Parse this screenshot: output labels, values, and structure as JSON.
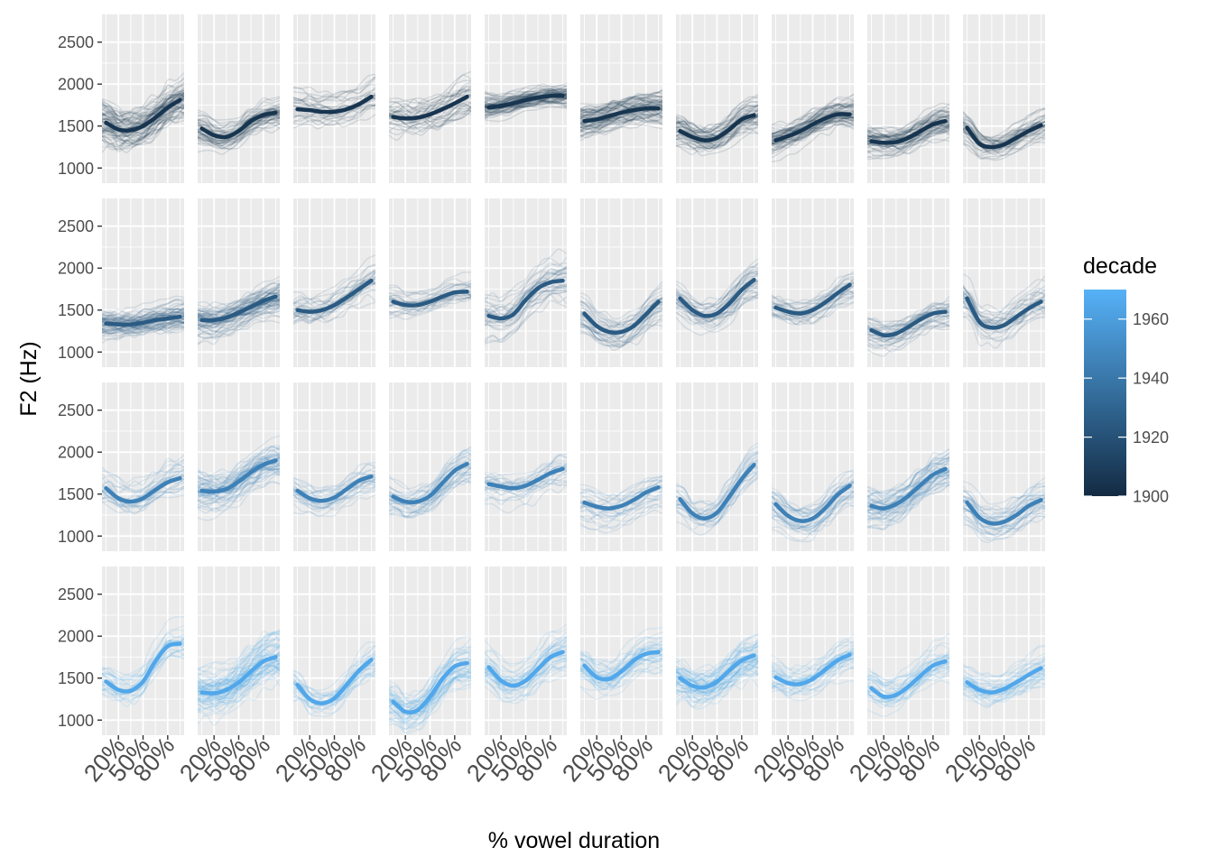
{
  "chart_data": {
    "type": "line",
    "facet_rows": 4,
    "facet_cols": 10,
    "xlabel": "% vowel duration",
    "ylabel": "F2 (Hz)",
    "x_ticks": [
      "20%",
      "50%",
      "80%"
    ],
    "x_tick_values": [
      20,
      50,
      80
    ],
    "xlim": [
      0,
      100
    ],
    "y_ticks": [
      1000,
      1500,
      2000,
      2500
    ],
    "ylim": [
      820,
      2830
    ],
    "grid": true,
    "panel_background": "#ebebeb",
    "legend": {
      "title": "decade",
      "placement": "right",
      "type": "colorbar",
      "range": [
        1900,
        1970
      ],
      "ticks": [
        1900,
        1920,
        1940,
        1960
      ],
      "color_low": "#132b43",
      "color_high": "#56b1f7"
    },
    "row_decades": [
      1905,
      1925,
      1945,
      1965
    ],
    "panels": [
      {
        "row": 0,
        "col": 0,
        "x": [
          5,
          20,
          35,
          50,
          65,
          80,
          95
        ],
        "y": [
          1540,
          1460,
          1450,
          1500,
          1600,
          1720,
          1810
        ],
        "spread": 260,
        "n": 70
      },
      {
        "row": 0,
        "col": 1,
        "x": [
          5,
          20,
          35,
          50,
          65,
          80,
          95
        ],
        "y": [
          1470,
          1390,
          1370,
          1440,
          1560,
          1630,
          1660
        ],
        "spread": 170,
        "n": 50
      },
      {
        "row": 0,
        "col": 2,
        "x": [
          5,
          20,
          35,
          50,
          65,
          80,
          95
        ],
        "y": [
          1700,
          1690,
          1670,
          1670,
          1700,
          1760,
          1850
        ],
        "spread": 190,
        "n": 28
      },
      {
        "row": 0,
        "col": 3,
        "x": [
          5,
          20,
          35,
          50,
          65,
          80,
          95
        ],
        "y": [
          1610,
          1590,
          1600,
          1640,
          1700,
          1770,
          1850
        ],
        "spread": 240,
        "n": 34
      },
      {
        "row": 0,
        "col": 4,
        "x": [
          5,
          20,
          35,
          50,
          65,
          80,
          95
        ],
        "y": [
          1720,
          1740,
          1770,
          1810,
          1840,
          1860,
          1860
        ],
        "spread": 130,
        "n": 70
      },
      {
        "row": 0,
        "col": 5,
        "x": [
          5,
          20,
          35,
          50,
          65,
          80,
          95
        ],
        "y": [
          1560,
          1580,
          1620,
          1660,
          1690,
          1710,
          1710
        ],
        "spread": 170,
        "n": 70
      },
      {
        "row": 0,
        "col": 6,
        "x": [
          5,
          20,
          35,
          50,
          65,
          80,
          95
        ],
        "y": [
          1440,
          1370,
          1330,
          1360,
          1460,
          1580,
          1630
        ],
        "spread": 200,
        "n": 50
      },
      {
        "row": 0,
        "col": 7,
        "x": [
          5,
          20,
          35,
          50,
          65,
          80,
          95
        ],
        "y": [
          1330,
          1380,
          1440,
          1520,
          1590,
          1640,
          1640
        ],
        "spread": 180,
        "n": 60
      },
      {
        "row": 0,
        "col": 8,
        "x": [
          5,
          20,
          35,
          50,
          65,
          80,
          95
        ],
        "y": [
          1320,
          1300,
          1310,
          1360,
          1440,
          1520,
          1560
        ],
        "spread": 170,
        "n": 60
      },
      {
        "row": 0,
        "col": 9,
        "x": [
          5,
          20,
          35,
          50,
          65,
          80,
          95
        ],
        "y": [
          1480,
          1290,
          1250,
          1280,
          1360,
          1440,
          1510
        ],
        "spread": 200,
        "n": 40
      },
      {
        "row": 1,
        "col": 0,
        "x": [
          5,
          20,
          35,
          50,
          65,
          80,
          95
        ],
        "y": [
          1340,
          1330,
          1330,
          1350,
          1380,
          1400,
          1420
        ],
        "spread": 170,
        "n": 70
      },
      {
        "row": 1,
        "col": 1,
        "x": [
          5,
          20,
          35,
          50,
          65,
          80,
          95
        ],
        "y": [
          1380,
          1380,
          1410,
          1470,
          1540,
          1610,
          1660
        ],
        "spread": 200,
        "n": 70
      },
      {
        "row": 1,
        "col": 2,
        "x": [
          5,
          20,
          35,
          50,
          65,
          80,
          95
        ],
        "y": [
          1500,
          1480,
          1500,
          1560,
          1650,
          1750,
          1850
        ],
        "spread": 220,
        "n": 28
      },
      {
        "row": 1,
        "col": 3,
        "x": [
          5,
          20,
          35,
          50,
          65,
          80,
          95
        ],
        "y": [
          1600,
          1560,
          1560,
          1600,
          1660,
          1710,
          1720
        ],
        "spread": 170,
        "n": 28
      },
      {
        "row": 1,
        "col": 4,
        "x": [
          5,
          20,
          35,
          50,
          65,
          80,
          95
        ],
        "y": [
          1430,
          1400,
          1450,
          1620,
          1760,
          1830,
          1850
        ],
        "spread": 250,
        "n": 34
      },
      {
        "row": 1,
        "col": 5,
        "x": [
          5,
          20,
          35,
          50,
          65,
          80,
          95
        ],
        "y": [
          1460,
          1310,
          1240,
          1240,
          1310,
          1450,
          1600
        ],
        "spread": 220,
        "n": 34
      },
      {
        "row": 1,
        "col": 6,
        "x": [
          5,
          20,
          35,
          50,
          65,
          80,
          95
        ],
        "y": [
          1640,
          1500,
          1430,
          1460,
          1580,
          1740,
          1860
        ],
        "spread": 220,
        "n": 34
      },
      {
        "row": 1,
        "col": 7,
        "x": [
          5,
          20,
          35,
          50,
          65,
          80,
          95
        ],
        "y": [
          1530,
          1480,
          1460,
          1500,
          1590,
          1700,
          1800
        ],
        "spread": 170,
        "n": 28
      },
      {
        "row": 1,
        "col": 8,
        "x": [
          5,
          20,
          35,
          50,
          65,
          80,
          95
        ],
        "y": [
          1260,
          1200,
          1220,
          1300,
          1390,
          1460,
          1480
        ],
        "spread": 180,
        "n": 34
      },
      {
        "row": 1,
        "col": 9,
        "x": [
          5,
          20,
          35,
          50,
          65,
          80,
          95
        ],
        "y": [
          1640,
          1360,
          1290,
          1320,
          1420,
          1520,
          1600
        ],
        "spread": 240,
        "n": 30
      },
      {
        "row": 2,
        "col": 0,
        "x": [
          5,
          20,
          35,
          50,
          65,
          80,
          95
        ],
        "y": [
          1570,
          1450,
          1410,
          1450,
          1550,
          1640,
          1690
        ],
        "spread": 220,
        "n": 28
      },
      {
        "row": 2,
        "col": 1,
        "x": [
          5,
          20,
          35,
          50,
          65,
          80,
          95
        ],
        "y": [
          1540,
          1530,
          1560,
          1650,
          1760,
          1850,
          1900
        ],
        "spread": 230,
        "n": 60
      },
      {
        "row": 2,
        "col": 2,
        "x": [
          5,
          20,
          35,
          50,
          65,
          80,
          95
        ],
        "y": [
          1540,
          1450,
          1420,
          1460,
          1560,
          1660,
          1710
        ],
        "spread": 200,
        "n": 28
      },
      {
        "row": 2,
        "col": 3,
        "x": [
          5,
          20,
          35,
          50,
          65,
          80,
          95
        ],
        "y": [
          1470,
          1410,
          1410,
          1480,
          1630,
          1780,
          1860
        ],
        "spread": 220,
        "n": 34
      },
      {
        "row": 2,
        "col": 4,
        "x": [
          5,
          20,
          35,
          50,
          65,
          80,
          95
        ],
        "y": [
          1620,
          1590,
          1570,
          1600,
          1670,
          1750,
          1800
        ],
        "spread": 230,
        "n": 26
      },
      {
        "row": 2,
        "col": 5,
        "x": [
          5,
          20,
          35,
          50,
          65,
          80,
          95
        ],
        "y": [
          1400,
          1350,
          1330,
          1360,
          1430,
          1520,
          1580
        ],
        "spread": 230,
        "n": 26
      },
      {
        "row": 2,
        "col": 6,
        "x": [
          5,
          20,
          35,
          50,
          65,
          80,
          95
        ],
        "y": [
          1440,
          1270,
          1210,
          1280,
          1470,
          1680,
          1850
        ],
        "spread": 220,
        "n": 26
      },
      {
        "row": 2,
        "col": 7,
        "x": [
          5,
          20,
          35,
          50,
          65,
          80,
          95
        ],
        "y": [
          1380,
          1240,
          1180,
          1210,
          1330,
          1490,
          1600
        ],
        "spread": 200,
        "n": 34
      },
      {
        "row": 2,
        "col": 8,
        "x": [
          5,
          20,
          35,
          50,
          65,
          80,
          95
        ],
        "y": [
          1360,
          1330,
          1380,
          1480,
          1610,
          1730,
          1800
        ],
        "spread": 220,
        "n": 50
      },
      {
        "row": 2,
        "col": 9,
        "x": [
          5,
          20,
          35,
          50,
          65,
          80,
          95
        ],
        "y": [
          1400,
          1220,
          1150,
          1170,
          1250,
          1360,
          1430
        ],
        "spread": 200,
        "n": 34
      },
      {
        "row": 3,
        "col": 0,
        "x": [
          5,
          20,
          35,
          50,
          65,
          80,
          95
        ],
        "y": [
          1460,
          1360,
          1350,
          1460,
          1700,
          1880,
          1910
        ],
        "spread": 220,
        "n": 28
      },
      {
        "row": 3,
        "col": 1,
        "x": [
          5,
          20,
          35,
          50,
          65,
          80,
          95
        ],
        "y": [
          1330,
          1320,
          1360,
          1450,
          1580,
          1700,
          1750
        ],
        "spread": 300,
        "n": 70
      },
      {
        "row": 3,
        "col": 2,
        "x": [
          5,
          20,
          35,
          50,
          65,
          80,
          95
        ],
        "y": [
          1420,
          1250,
          1200,
          1260,
          1420,
          1590,
          1720
        ],
        "spread": 240,
        "n": 30
      },
      {
        "row": 3,
        "col": 3,
        "x": [
          5,
          20,
          35,
          50,
          65,
          80,
          95
        ],
        "y": [
          1220,
          1100,
          1120,
          1280,
          1490,
          1640,
          1680
        ],
        "spread": 260,
        "n": 50
      },
      {
        "row": 3,
        "col": 4,
        "x": [
          5,
          20,
          35,
          50,
          65,
          80,
          95
        ],
        "y": [
          1630,
          1470,
          1410,
          1470,
          1610,
          1750,
          1810
        ],
        "spread": 220,
        "n": 40
      },
      {
        "row": 3,
        "col": 5,
        "x": [
          5,
          20,
          35,
          50,
          65,
          80,
          95
        ],
        "y": [
          1650,
          1510,
          1490,
          1580,
          1710,
          1790,
          1810
        ],
        "spread": 220,
        "n": 40
      },
      {
        "row": 3,
        "col": 6,
        "x": [
          5,
          20,
          35,
          50,
          65,
          80,
          95
        ],
        "y": [
          1500,
          1410,
          1390,
          1460,
          1590,
          1710,
          1770
        ],
        "spread": 260,
        "n": 60
      },
      {
        "row": 3,
        "col": 7,
        "x": [
          5,
          20,
          35,
          50,
          65,
          80,
          95
        ],
        "y": [
          1510,
          1440,
          1430,
          1490,
          1600,
          1710,
          1780
        ],
        "spread": 230,
        "n": 34
      },
      {
        "row": 3,
        "col": 8,
        "x": [
          5,
          20,
          35,
          50,
          65,
          80,
          95
        ],
        "y": [
          1380,
          1280,
          1300,
          1400,
          1530,
          1650,
          1700
        ],
        "spread": 230,
        "n": 34
      },
      {
        "row": 3,
        "col": 9,
        "x": [
          5,
          20,
          35,
          50,
          65,
          80,
          95
        ],
        "y": [
          1450,
          1360,
          1330,
          1370,
          1450,
          1540,
          1620
        ],
        "spread": 200,
        "n": 34
      }
    ]
  }
}
